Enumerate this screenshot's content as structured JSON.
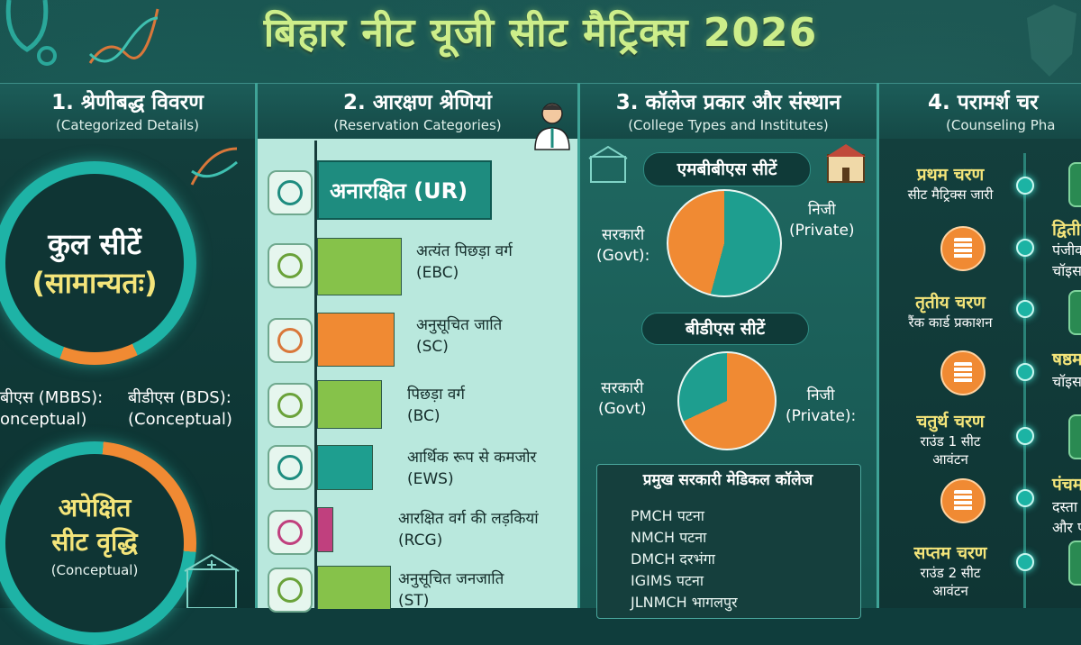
{
  "title": "बिहार नीट यूजी सीट मैट्रिक्स 2026",
  "columns": [
    {
      "heading": "1. श्रेणीबद्ध विवरण",
      "sub": "(Categorized Details)"
    },
    {
      "heading": "2. आरक्षण श्रेणियां",
      "sub": "(Reservation Categories)"
    },
    {
      "heading": "3. कॉलेज प्रकार और संस्थान",
      "sub": "(College Types and Institutes)"
    },
    {
      "heading": "4. परामर्श चर",
      "sub": "(Counseling Pha"
    }
  ],
  "col1": {
    "total_line1": "कुल सीटें",
    "total_line2": "(सामान्यतः)",
    "mbbs_line1": "बीएस (MBBS):",
    "mbbs_line2": "onceptual)",
    "bds_line1": "बीडीएस (BDS):",
    "bds_line2": "(Conceptual)",
    "growth_line1": "अपेक्षित",
    "growth_line2": "सीट वृद्धि",
    "growth_line3": "(Conceptual)"
  },
  "col2": {
    "ur_label": "अनारक्षित (UR)",
    "categories": [
      {
        "hi": "अत्यंत पिछड़ा वर्ग",
        "code": "(EBC)",
        "color": "#86c24a"
      },
      {
        "hi": "अनुसूचित जाति",
        "code": "(SC)",
        "color": "#f08a33"
      },
      {
        "hi": "पिछड़ा वर्ग",
        "code": "(BC)",
        "color": "#86c24a"
      },
      {
        "hi": "आर्थिक रूप से कमजोर",
        "code": "(EWS)",
        "color": "#1e9e8f"
      },
      {
        "hi": "आरक्षित वर्ग की लड़कियां",
        "code": "(RCG)",
        "color": "#c0407e"
      },
      {
        "hi": "अनुसूचित जनजाति",
        "code": "(ST)",
        "color": "#86c24a"
      }
    ]
  },
  "col3": {
    "mbbs_pill": "एमबीबीएस सीटें",
    "bds_pill": "बीडीएस सीटें",
    "govt_1": "सरकारी",
    "govt_1b": "(Govt):",
    "pvt_1": "निजी",
    "pvt_1b": "(Private)",
    "govt_2": "सरकारी",
    "govt_2b": "(Govt)",
    "pvt_2": "निजी",
    "pvt_2b": "(Private):",
    "panel_title": "प्रमुख सरकारी मेडिकल कॉलेज",
    "colleges": [
      "PMCH पटना",
      "NMCH पटना",
      "DMCH दरभंगा",
      "IGIMS पटना",
      "JLNMCH भागलपुर"
    ]
  },
  "col4": {
    "stages": [
      {
        "name": "प्रथम चरण",
        "desc1": "सीट मैट्रिक्स जारी",
        "desc2": ""
      },
      {
        "name": "तृतीय चरण",
        "desc1": "रैंक कार्ड प्रकाशन",
        "desc2": ""
      },
      {
        "name": "चतुर्थ चरण",
        "desc1": "राउंड 1 सीट",
        "desc2": "आवंटन"
      },
      {
        "name": "सप्तम चरण",
        "desc1": "राउंड 2 सीट",
        "desc2": "आवंटन"
      }
    ],
    "right": [
      {
        "t": "द्विती",
        "y": true
      },
      {
        "t": "पंजीक",
        "y": false
      },
      {
        "t": "चॉइस",
        "y": false
      },
      {
        "t": "षष्ठम",
        "y": true
      },
      {
        "t": "चॉइस",
        "y": false
      },
      {
        "t": "पंचम",
        "y": true
      },
      {
        "t": "दस्ता",
        "y": false
      },
      {
        "t": "और प",
        "y": false
      }
    ]
  }
}
